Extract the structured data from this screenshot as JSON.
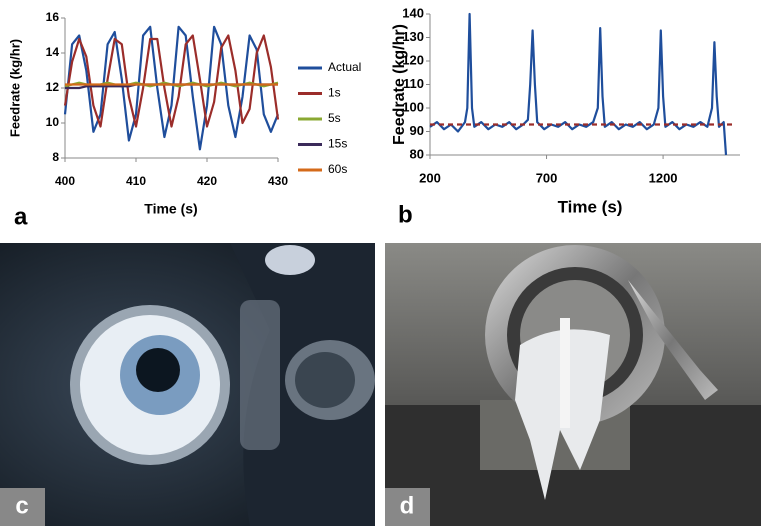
{
  "chart_data": [
    {
      "type": "line",
      "panel_label": "a",
      "xlabel": "Time (s)",
      "ylabel": "Feedrate (kg/hr)",
      "x": [
        400,
        401,
        402,
        403,
        404,
        405,
        406,
        407,
        408,
        409,
        410,
        411,
        412,
        413,
        414,
        415,
        416,
        417,
        418,
        419,
        420,
        421,
        422,
        423,
        424,
        425,
        426,
        427,
        428,
        429,
        430
      ],
      "series": [
        {
          "name": "Actual",
          "color": "#1f4e9c",
          "values": [
            10.5,
            14.5,
            15.0,
            13.0,
            9.5,
            10.5,
            14.5,
            15.2,
            12.5,
            9.0,
            10.5,
            15.0,
            15.5,
            12.0,
            9.2,
            11.0,
            15.5,
            15.0,
            11.5,
            8.5,
            11.0,
            15.5,
            14.5,
            11.0,
            9.2,
            11.5,
            15.0,
            14.2,
            10.5,
            9.5,
            10.5
          ]
        },
        {
          "name": "1s",
          "color": "#9b2d2a",
          "values": [
            11.0,
            13.5,
            14.8,
            13.8,
            11.0,
            9.8,
            12.5,
            14.8,
            14.5,
            11.5,
            9.8,
            12.0,
            14.8,
            14.8,
            12.0,
            9.8,
            11.5,
            14.5,
            15.0,
            12.5,
            9.8,
            11.2,
            14.3,
            15.0,
            13.0,
            10.0,
            10.8,
            14.0,
            15.0,
            13.2,
            10.2
          ]
        },
        {
          "name": "5s",
          "color": "#8aa832",
          "values": [
            12.1,
            12.2,
            12.3,
            12.2,
            12.1,
            12.2,
            12.3,
            12.2,
            12.1,
            12.2,
            12.3,
            12.2,
            12.1,
            12.2,
            12.3,
            12.2,
            12.1,
            12.2,
            12.3,
            12.2,
            12.1,
            12.2,
            12.3,
            12.2,
            12.1,
            12.2,
            12.3,
            12.2,
            12.1,
            12.2,
            12.3
          ]
        },
        {
          "name": "15s",
          "color": "#3b2a5a",
          "values": [
            12.0,
            12.0,
            12.0,
            12.1,
            12.1,
            12.1,
            12.1,
            12.1,
            12.1,
            12.1,
            12.2,
            12.2,
            12.2,
            12.2,
            12.2,
            12.2,
            12.2,
            12.2,
            12.2,
            12.2,
            12.2,
            12.2,
            12.2,
            12.2,
            12.2,
            12.2,
            12.2,
            12.2,
            12.2,
            12.2,
            12.2
          ]
        },
        {
          "name": "60s",
          "color": "#d46a1a",
          "values": [
            12.2,
            12.2,
            12.2,
            12.2,
            12.2,
            12.2,
            12.2,
            12.2,
            12.2,
            12.2,
            12.2,
            12.2,
            12.2,
            12.2,
            12.2,
            12.2,
            12.2,
            12.2,
            12.2,
            12.2,
            12.2,
            12.2,
            12.2,
            12.2,
            12.2,
            12.2,
            12.2,
            12.2,
            12.2,
            12.2,
            12.2
          ]
        }
      ],
      "xlim": [
        400,
        430
      ],
      "xticks": [
        400,
        410,
        420,
        430
      ],
      "ylim": [
        8,
        16
      ],
      "yticks": [
        8,
        10,
        12,
        14,
        16
      ],
      "legend": "right"
    },
    {
      "type": "line",
      "panel_label": "b",
      "xlabel": "Time (s)",
      "ylabel": "Feedrate (kg/hr)",
      "x": [
        200,
        230,
        260,
        290,
        320,
        350,
        360,
        370,
        380,
        390,
        420,
        450,
        480,
        510,
        540,
        570,
        600,
        620,
        630,
        640,
        650,
        660,
        690,
        720,
        750,
        780,
        810,
        840,
        870,
        900,
        920,
        930,
        940,
        950,
        980,
        1010,
        1040,
        1070,
        1100,
        1130,
        1160,
        1180,
        1190,
        1200,
        1210,
        1240,
        1270,
        1300,
        1330,
        1360,
        1390,
        1410,
        1420,
        1430,
        1440,
        1460,
        1470
      ],
      "series": [
        {
          "color": "#1f4e9c",
          "values": [
            92,
            94,
            91,
            93,
            90,
            94,
            100,
            140,
            100,
            92,
            94,
            91,
            93,
            92,
            94,
            91,
            93,
            95,
            110,
            133,
            110,
            94,
            91,
            93,
            92,
            94,
            91,
            93,
            92,
            94,
            100,
            134,
            105,
            92,
            94,
            91,
            93,
            92,
            94,
            91,
            93,
            100,
            133,
            105,
            92,
            94,
            91,
            93,
            92,
            94,
            92,
            100,
            128,
            105,
            92,
            94,
            80
          ]
        },
        {
          "color": "#9b2d2a",
          "dash": true,
          "x": [
            200,
            1500
          ],
          "values": [
            93,
            93
          ]
        }
      ],
      "xlim": [
        200,
        1530
      ],
      "xticks": [
        200,
        700,
        1200
      ],
      "ylim": [
        80,
        140
      ],
      "yticks": [
        80,
        90,
        100,
        110,
        120,
        130,
        140
      ]
    }
  ],
  "photos": [
    {
      "label": "c"
    },
    {
      "label": "d"
    }
  ]
}
